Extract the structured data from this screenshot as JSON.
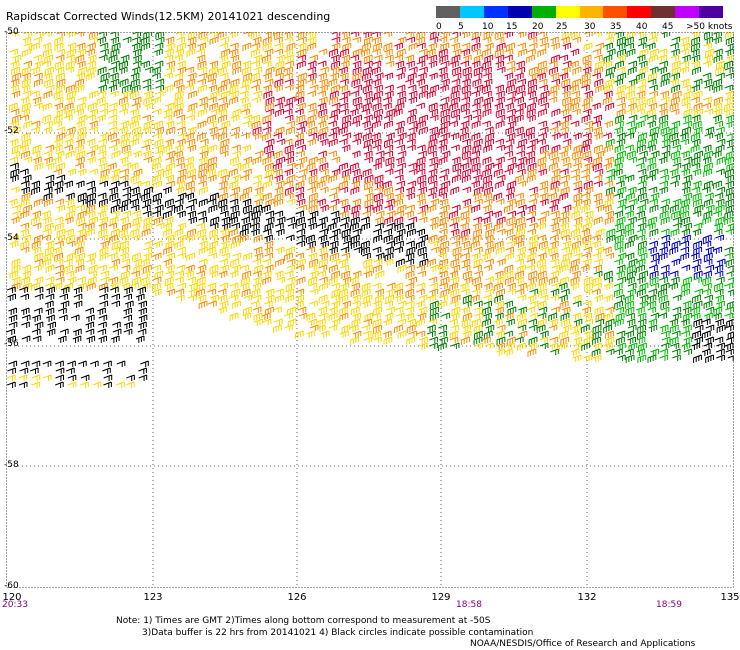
{
  "title": "Rapidscat Corrected Winds(12.5KM) 20141021 descending",
  "legend": {
    "labels": [
      "0",
      "5",
      "10",
      "15",
      "20",
      "25",
      "30",
      "35",
      "40",
      "45",
      ">50 knots"
    ],
    "colors": [
      "#606060",
      "#00c8ff",
      "#0032ff",
      "#0000b0",
      "#00b000",
      "#ffff00",
      "#ffb400",
      "#ff5000",
      "#ff0000",
      "#6e3030",
      "#c000ff",
      "#5000a0"
    ]
  },
  "axes": {
    "x_ticks": [
      "120",
      "123",
      "126",
      "129",
      "132",
      "135"
    ],
    "y_ticks": [
      "-50",
      "-52",
      "-54",
      "-56",
      "-58",
      "-60"
    ],
    "time_labels": [
      "20:33",
      "18:58",
      "18:59"
    ]
  },
  "notes": {
    "line1": "Note: 1) Times are GMT 2)Times along bottom correspond to measurement at -50S",
    "line2": "3)Data buffer is 22 hrs from 20141021 4) Black circles indicate possible contamination",
    "credit": "NOAA/NESDIS/Office of Research and Applications"
  },
  "colors": {
    "yellow": "#ffd700",
    "orange": "#ff8c00",
    "red": "#e00030",
    "green": "#008000",
    "lime": "#00c000",
    "blue": "#0000cc",
    "black": "#000000",
    "axis_purple": "#800080"
  }
}
